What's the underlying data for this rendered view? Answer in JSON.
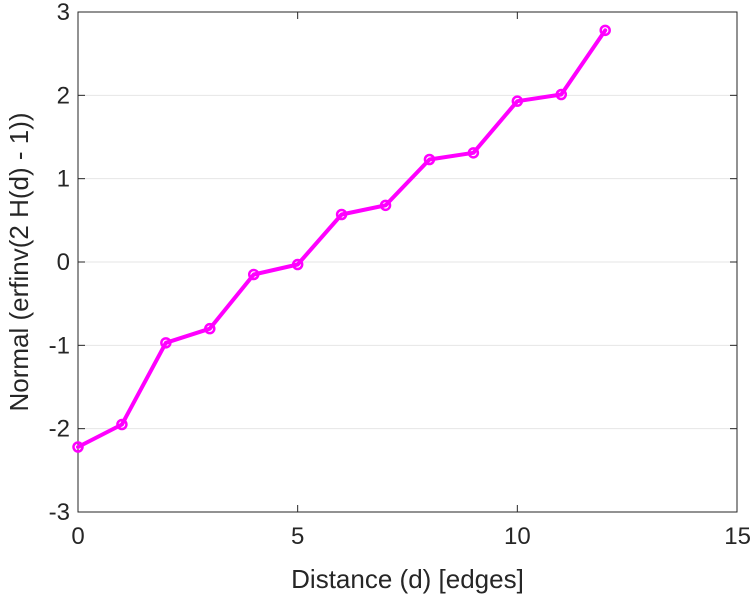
{
  "chart_data": {
    "type": "line",
    "title": "",
    "xlabel": "Distance (d) [edges]",
    "ylabel": "Normal (erfinv(2 H(d) - 1))",
    "xlim": [
      0,
      15
    ],
    "ylim": [
      -3,
      3
    ],
    "xticks": [
      0,
      5,
      10,
      15
    ],
    "yticks": [
      -3,
      -2,
      -1,
      0,
      1,
      2,
      3
    ],
    "grid": "horizontal",
    "legend": "none",
    "series": [
      {
        "color": "#ff00ff",
        "marker": "circle",
        "x": [
          0,
          1,
          2,
          3,
          4,
          5,
          6,
          7,
          8,
          9,
          10,
          11,
          12
        ],
        "y": [
          -2.22,
          -1.95,
          -0.97,
          -0.8,
          -0.15,
          -0.03,
          0.57,
          0.68,
          1.23,
          1.31,
          1.93,
          2.01,
          2.78
        ]
      }
    ]
  }
}
